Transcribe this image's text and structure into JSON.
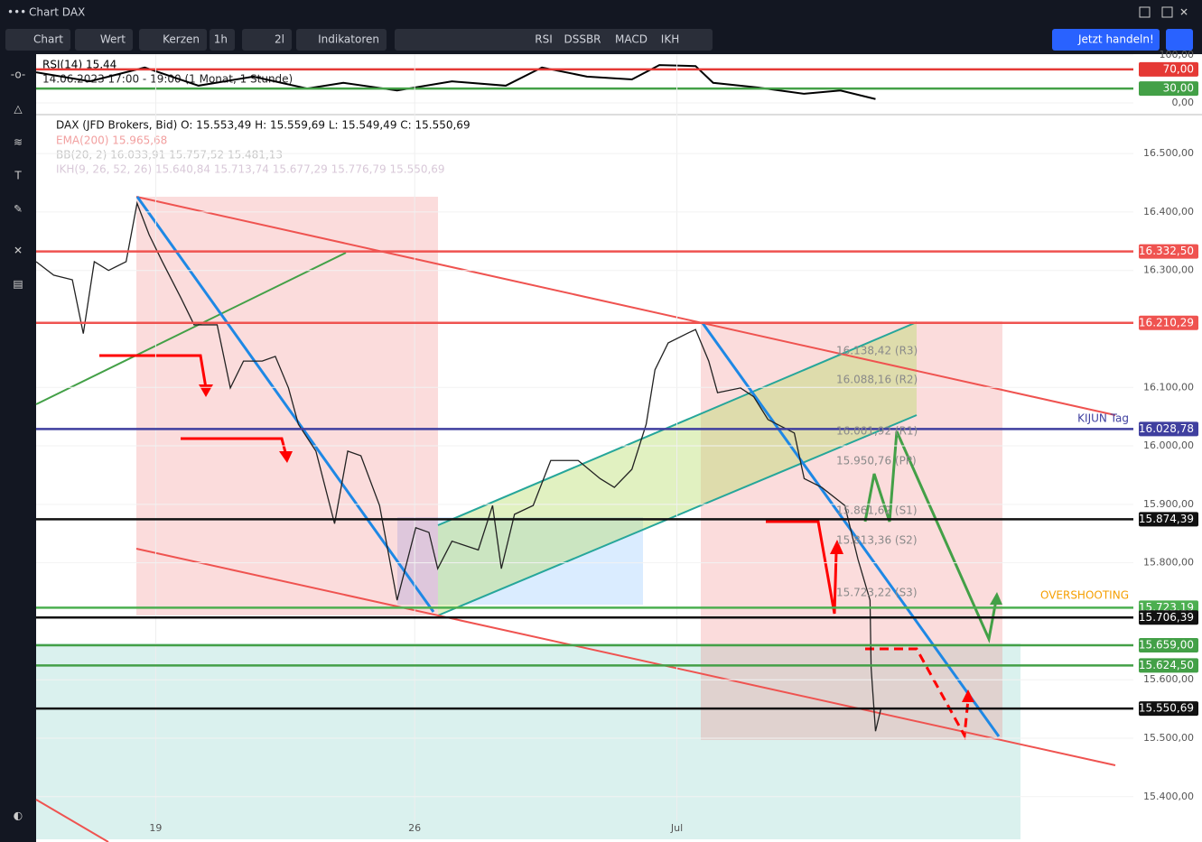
{
  "window": {
    "title": "Chart DAX"
  },
  "toolbar": {
    "buttons": [
      "Chart",
      "Wert",
      "Kerzen",
      "1h",
      "2l",
      "Indikatoren"
    ],
    "indicators": [
      "RSI",
      "DSSBR",
      "MACD",
      "IKH"
    ],
    "trade": "Jetzt handeln!"
  },
  "legend": {
    "rsi": "RSI(14)  15,44",
    "range": "14.06.2023 17:00 - 19:00  (1 Monat, 1 Stunde)",
    "instrument": "DAX (JFD Brokers, Bid)  O: 15.553,49  H: 15.559,69  L: 15.549,49  C: 15.550,69",
    "ema": "EMA(200)  15.965,68",
    "bb": "BB(20, 2)  16.033,91  15.757,52  15.481,13",
    "ikh": "IKH(9, 26, 52, 26)  15.640,84  15.713,74  15.677,29  15.776,79  15.550,69"
  },
  "chart_data": [
    {
      "type": "line",
      "color": "#000000",
      "x": [
        0,
        4.9,
        9.9,
        14.8,
        19.8,
        24.7,
        28.0,
        32.9,
        37.9,
        42.8,
        46.1,
        50.2,
        54.3,
        56.8,
        60.1,
        61.7,
        65.8,
        70.0,
        73.3,
        76.5
      ],
      "values": [
        64,
        45,
        74,
        36,
        55,
        30,
        42,
        26,
        45,
        36,
        74,
        55,
        49,
        79,
        77,
        42,
        32,
        19,
        26,
        8
      ],
      "xlim": [
        0,
        100
      ],
      "ylim": [
        0,
        100
      ],
      "yticks": [
        {
          "value": 100,
          "label": "100,00"
        },
        {
          "value": 0,
          "label": "0,00"
        }
      ],
      "levels": [
        {
          "value": 70,
          "label": "70,00",
          "color": "#e53935"
        },
        {
          "value": 30,
          "label": "30,00",
          "color": "#43a047"
        }
      ]
    },
    {
      "type": "line",
      "color": "#222222",
      "x": [
        0,
        1.6,
        3.3,
        4.3,
        5.3,
        6.6,
        8.2,
        9.2,
        10.3,
        11.5,
        13.2,
        14.4,
        16.5,
        17.7,
        18.9,
        20.6,
        21.8,
        23.0,
        23.9,
        25.5,
        27.2,
        28.4,
        29.6,
        31.3,
        32.9,
        34.6,
        35.8,
        36.6,
        37.9,
        40.3,
        41.6,
        42.4,
        43.6,
        45.3,
        46.9,
        49.4,
        51.4,
        52.7,
        54.3,
        55.6,
        56.4,
        57.6,
        59.3,
        60.1,
        61.3,
        62.1,
        64.2,
        65.4,
        66.7,
        69.1,
        70.0,
        71.6,
        73.7,
        74.9,
        76.0,
        76.1,
        76.5,
        77.0
      ],
      "values": [
        16315,
        16292,
        16284,
        16192,
        16315,
        16300,
        16315,
        16415,
        16361,
        16315,
        16253,
        16207,
        16207,
        16099,
        16145,
        16145,
        16153,
        16099,
        16037,
        15991,
        15867,
        15991,
        15983,
        15898,
        15736,
        15860,
        15852,
        15790,
        15837,
        15822,
        15898,
        15790,
        15883,
        15898,
        15975,
        15975,
        15944,
        15929,
        15960,
        16037,
        16130,
        16176,
        16192,
        16199,
        16145,
        16091,
        16099,
        16084,
        16045,
        16022,
        15944,
        15929,
        15898,
        15806,
        15736,
        15620,
        15512,
        15551
      ],
      "xlim": [
        0,
        100
      ],
      "ylim": [
        15358,
        16565
      ],
      "yticks": [
        {
          "value": 16500,
          "label": "16.500,00"
        },
        {
          "value": 16400,
          "label": "16.400,00"
        },
        {
          "value": 16300,
          "label": "16.300,00"
        },
        {
          "value": 16100,
          "label": "16.100,00"
        },
        {
          "value": 16000,
          "label": "16.000,00"
        },
        {
          "value": 15900,
          "label": "15.900,00"
        },
        {
          "value": 15800,
          "label": "15.800,00"
        },
        {
          "value": 15600,
          "label": "15.600,00"
        },
        {
          "value": 15500,
          "label": "15.500,00"
        },
        {
          "value": 15400,
          "label": "15.400,00"
        }
      ],
      "xticks": [
        {
          "value": 10.9,
          "label": "19"
        },
        {
          "value": 34.5,
          "label": "26"
        },
        {
          "value": 58.4,
          "label": "Jul"
        }
      ],
      "levels": [
        {
          "value": 16332.5,
          "label": "16.332,50",
          "color": "#ef5350"
        },
        {
          "value": 16210.29,
          "label": "16.210,29",
          "color": "#ef5350"
        },
        {
          "value": 16028.78,
          "label": "16.028,78",
          "color": "#3f3f9f"
        },
        {
          "value": 15874.39,
          "label": "15.874,39",
          "color": "#111111"
        },
        {
          "value": 15723.19,
          "label": "15.723,19",
          "color": "#4caf50"
        },
        {
          "value": 15706.39,
          "label": "15.706,39",
          "color": "#111111"
        },
        {
          "value": 15659,
          "label": "15.659,00",
          "color": "#43a047"
        },
        {
          "value": 15624.5,
          "label": "15.624,50",
          "color": "#43a047"
        },
        {
          "value": 15550.69,
          "label": "15.550,69",
          "color": "#111111"
        }
      ],
      "annotations": [
        "KIJUN Tag",
        "OVERSHOOTING"
      ],
      "pivots": [
        "16.138,42 (R3)",
        "16.088,16 (R2)",
        "16.001,92 (R1)",
        "15.950,76 (PP)",
        "15.861,62 (S1)",
        "15.813,36 (S2)",
        "15.723,22 (S3)"
      ]
    }
  ]
}
